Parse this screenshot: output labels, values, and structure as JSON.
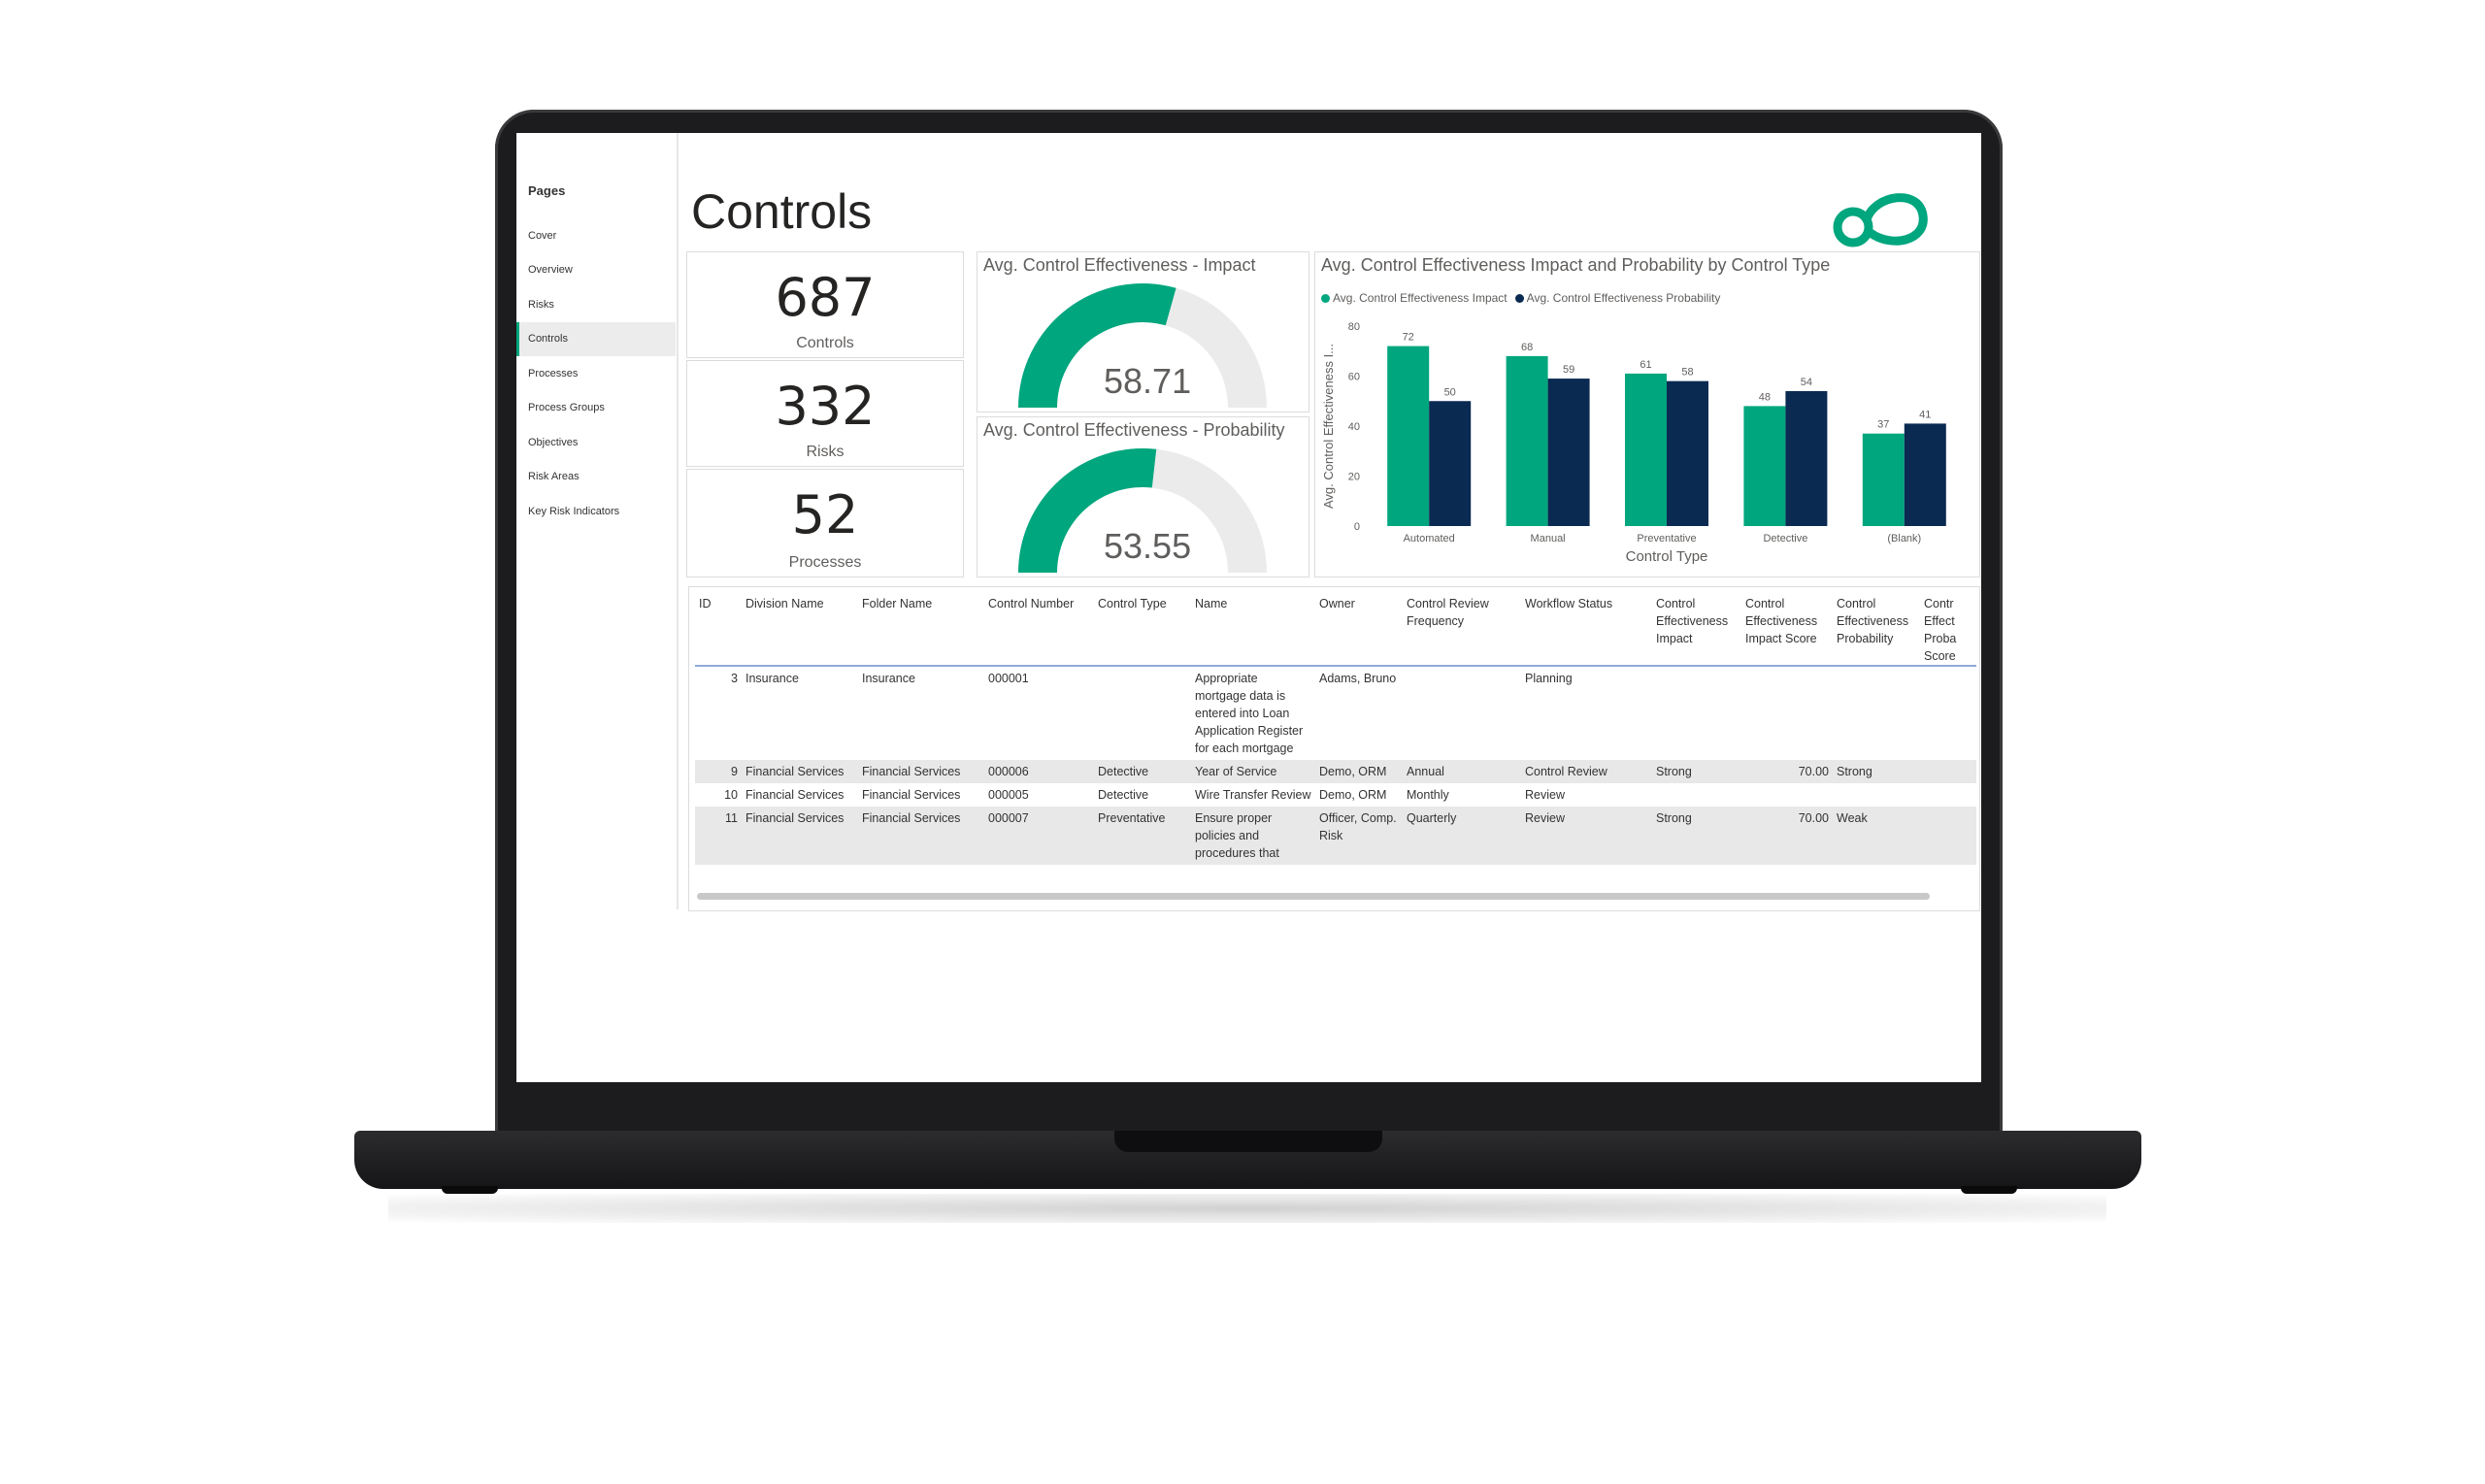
{
  "nav": {
    "title": "Pages",
    "items": [
      {
        "label": "Cover",
        "active": false
      },
      {
        "label": "Overview",
        "active": false
      },
      {
        "label": "Risks",
        "active": false
      },
      {
        "label": "Controls",
        "active": true
      },
      {
        "label": "Processes",
        "active": false
      },
      {
        "label": "Process Groups",
        "active": false
      },
      {
        "label": "Objectives",
        "active": false
      },
      {
        "label": "Risk Areas",
        "active": false
      },
      {
        "label": "Key Risk Indicators",
        "active": false
      }
    ]
  },
  "header": {
    "title": "Controls"
  },
  "kpis": [
    {
      "value": "687",
      "label": "Controls"
    },
    {
      "value": "332",
      "label": "Risks"
    },
    {
      "value": "52",
      "label": "Processes"
    }
  ],
  "gauges": [
    {
      "title": "Avg. Control Effectiveness - Impact",
      "value": "58.71",
      "fraction": 0.5871
    },
    {
      "title": "Avg. Control Effectiveness - Probability",
      "value": "53.55",
      "fraction": 0.5355
    }
  ],
  "colors": {
    "teal": "#00a67e",
    "navy": "#0a2a52",
    "gauge_bg": "#ebebeb"
  },
  "chart_data": {
    "type": "bar",
    "title": "Avg. Control Effectiveness Impact and Probability by Control Type",
    "xlabel": "Control Type",
    "ylabel": "Avg. Control Effectiveness I...",
    "categories": [
      "Automated",
      "Manual",
      "Preventative",
      "Detective",
      "(Blank)"
    ],
    "series": [
      {
        "name": "Avg. Control Effectiveness Impact",
        "values": [
          72,
          68,
          61,
          48,
          37
        ],
        "color": "#00a67e"
      },
      {
        "name": "Avg. Control Effectiveness Probability",
        "values": [
          50,
          59,
          58,
          54,
          41
        ],
        "color": "#0a2a52"
      }
    ],
    "ylim": [
      0,
      80
    ],
    "yticks": [
      0,
      20,
      40,
      60,
      80
    ],
    "legend": "top-left",
    "grid": false
  },
  "table": {
    "columns": [
      "ID",
      "Division Name",
      "Folder Name",
      "Control Number",
      "Control Type",
      "Name",
      "Owner",
      "Control Review Frequency",
      "Workflow Status",
      "Control Effectiveness Impact",
      "Control Effectiveness Impact Score",
      "Control Effectiveness Probability",
      "Control Effectiveness Probability Score"
    ],
    "visible_last_column": "Contr Effect Proba Score",
    "rows": [
      {
        "cells": [
          "3",
          "Insurance",
          "Insurance",
          "000001",
          "",
          "Appropriate mortgage data is entered into Loan Application Register for each mortgage",
          "Adams, Bruno",
          "",
          "Planning",
          "",
          "",
          "",
          ""
        ],
        "shaded": false
      },
      {
        "cells": [
          "9",
          "Financial Services",
          "Financial Services",
          "000006",
          "Detective",
          "Year of Service",
          "Demo, ORM",
          "Annual",
          "Control Review",
          "Strong",
          "70.00",
          "Strong",
          ""
        ],
        "shaded": true
      },
      {
        "cells": [
          "10",
          "Financial Services",
          "Financial Services",
          "000005",
          "Detective",
          "Wire Transfer Review",
          "Demo, ORM",
          "Monthly",
          "Review",
          "",
          "",
          "",
          ""
        ],
        "shaded": false
      },
      {
        "cells": [
          "11",
          "Financial Services",
          "Financial Services",
          "000007",
          "Preventative",
          "Ensure proper policies and procedures that",
          "Officer, Comp. Risk",
          "Quarterly",
          "Review",
          "Strong",
          "70.00",
          "Weak",
          ""
        ],
        "shaded": true
      }
    ]
  }
}
